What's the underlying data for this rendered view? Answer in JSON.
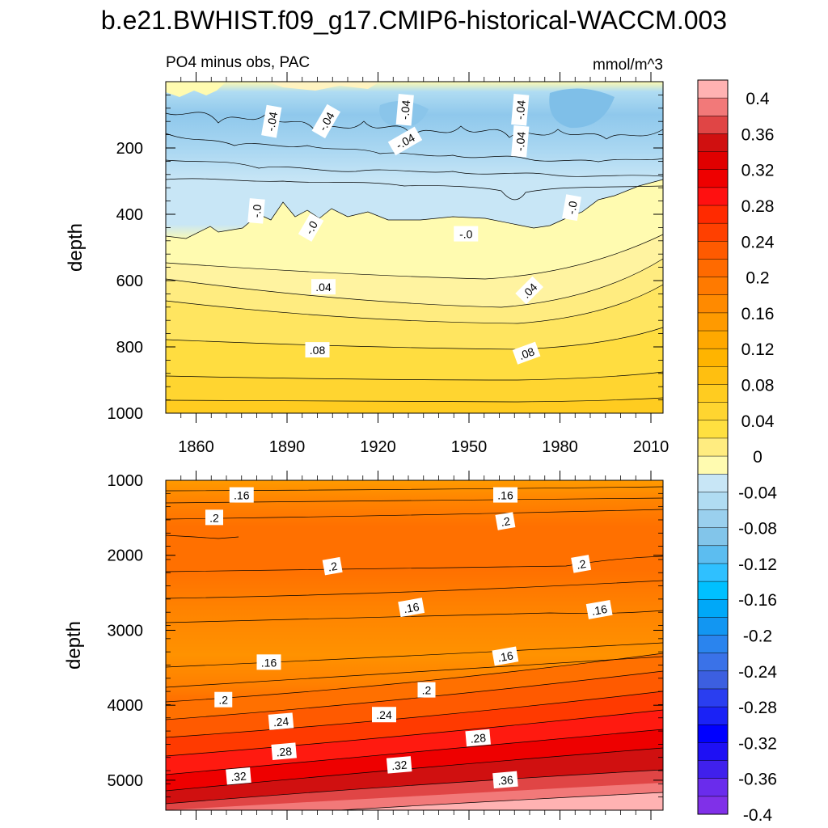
{
  "title": "b.e21.BWHIST.f09_g17.CMIP6-historical-WACCM.003",
  "chart_data": [
    {
      "type": "heatmap",
      "panel": "upper",
      "subtitle_left": "PO4 minus obs, PAC",
      "subtitle_right": "mmol/m^3",
      "ylabel": "depth",
      "xlim": [
        1850,
        2014
      ],
      "ylim": [
        0,
        1000
      ],
      "y_inverted": true,
      "x_ticks": [
        "1860",
        "1890",
        "1920",
        "1950",
        "1980",
        "2010"
      ],
      "y_ticks": [
        "200",
        "400",
        "600",
        "800",
        "1000"
      ],
      "contour_labels": [
        {
          "text": "-.04",
          "year": 1885,
          "depth": 120,
          "angle": -80
        },
        {
          "text": "-.04",
          "year": 1903,
          "depth": 120,
          "angle": -60
        },
        {
          "text": "-.04",
          "year": 1929,
          "depth": 85,
          "angle": -85
        },
        {
          "text": "-.04",
          "year": 1967,
          "depth": 85,
          "angle": -85
        },
        {
          "text": "-.04",
          "year": 1929,
          "depth": 180,
          "angle": -30
        },
        {
          "text": "-.04",
          "year": 1967,
          "depth": 180,
          "angle": -85
        },
        {
          "text": "-.0",
          "year": 1880,
          "depth": 390,
          "angle": -85
        },
        {
          "text": "-.0",
          "year": 1898,
          "depth": 440,
          "angle": -60
        },
        {
          "text": "-.0",
          "year": 1984,
          "depth": 380,
          "angle": -80
        },
        {
          "text": "-.0",
          "year": 1949,
          "depth": 460,
          "angle": 0
        },
        {
          "text": ".04",
          "year": 1902,
          "depth": 620,
          "angle": 0
        },
        {
          "text": ".04",
          "year": 1970,
          "depth": 630,
          "angle": -45
        },
        {
          "text": ".08",
          "year": 1900,
          "depth": 810,
          "angle": 0
        },
        {
          "text": ".08",
          "year": 1969,
          "depth": 820,
          "angle": -20
        }
      ]
    },
    {
      "type": "heatmap",
      "panel": "lower",
      "ylabel": "depth",
      "xlim": [
        1850,
        2014
      ],
      "ylim": [
        1000,
        5400
      ],
      "y_inverted": true,
      "y_ticks": [
        "1000",
        "2000",
        "3000",
        "4000",
        "5000"
      ],
      "contour_labels": [
        {
          "text": ".16",
          "year": 1875,
          "depth": 1200,
          "angle": 0
        },
        {
          "text": ".16",
          "year": 1962,
          "depth": 1200,
          "angle": 0
        },
        {
          "text": ".2",
          "year": 1866,
          "depth": 1500,
          "angle": 0
        },
        {
          "text": ".2",
          "year": 1962,
          "depth": 1550,
          "angle": -10
        },
        {
          "text": ".2",
          "year": 1905,
          "depth": 2150,
          "angle": -10
        },
        {
          "text": ".2",
          "year": 1987,
          "depth": 2120,
          "angle": -10
        },
        {
          "text": ".16",
          "year": 1931,
          "depth": 2700,
          "angle": -10
        },
        {
          "text": ".16",
          "year": 1993,
          "depth": 2730,
          "angle": -10
        },
        {
          "text": ".16",
          "year": 1962,
          "depth": 3350,
          "angle": -10
        },
        {
          "text": ".16",
          "year": 1884,
          "depth": 3430,
          "angle": 0
        },
        {
          "text": ".2",
          "year": 1936,
          "depth": 3800,
          "angle": 0
        },
        {
          "text": ".2",
          "year": 1869,
          "depth": 3930,
          "angle": 0
        },
        {
          "text": ".24",
          "year": 1888,
          "depth": 4220,
          "angle": -5
        },
        {
          "text": ".24",
          "year": 1922,
          "depth": 4130,
          "angle": 0
        },
        {
          "text": ".28",
          "year": 1953,
          "depth": 4440,
          "angle": -5
        },
        {
          "text": ".28",
          "year": 1889,
          "depth": 4620,
          "angle": -5
        },
        {
          "text": ".32",
          "year": 1927,
          "depth": 4800,
          "angle": -5
        },
        {
          "text": ".32",
          "year": 1874,
          "depth": 4950,
          "angle": -5
        },
        {
          "text": ".36",
          "year": 1962,
          "depth": 5000,
          "angle": -5
        }
      ]
    }
  ],
  "colorbar": {
    "labels": [
      "0.4",
      "0.36",
      "0.32",
      "0.28",
      "0.24",
      "0.2",
      "0.16",
      "0.12",
      "0.08",
      "0.04",
      "0",
      "-0.04",
      "-0.08",
      "-0.12",
      "-0.16",
      "-0.2",
      "-0.24",
      "-0.28",
      "-0.32",
      "-0.36",
      "-0.4"
    ],
    "colors": [
      "#ffb2b2",
      "#f27979",
      "#e04545",
      "#d01010",
      "#e00000",
      "#ee0000",
      "#ff1010",
      "#ff2a00",
      "#ff4000",
      "#ff5a00",
      "#ff6a00",
      "#ff7a00",
      "#ff8a00",
      "#ff9a00",
      "#ffa800",
      "#ffb400",
      "#ffbf10",
      "#ffcc20",
      "#ffd530",
      "#ffe040",
      "#ffec80",
      "#fffbb0",
      "#c8e6f6",
      "#b0dcf2",
      "#9ad0ee",
      "#82c5ea",
      "#5cbdf0",
      "#2fc0ff",
      "#00c0ff",
      "#00a8f8",
      "#1296f2",
      "#2a84ee",
      "#3a72e8",
      "#3c5fe0",
      "#2a3ef0",
      "#1a22f6",
      "#0000ff",
      "#1e10f4",
      "#4020ec",
      "#6a2cec",
      "#8030e8"
    ]
  }
}
